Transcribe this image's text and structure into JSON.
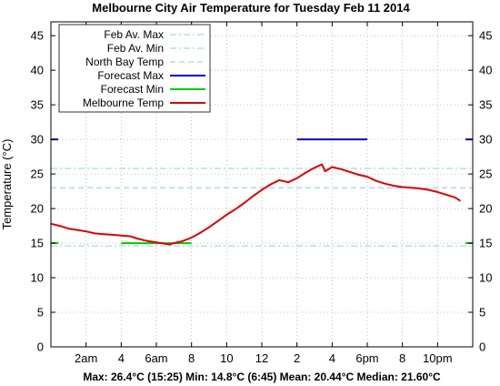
{
  "chart_data": {
    "type": "line",
    "title": "Melbourne City Air Temperature  for Tuesday Feb 11 2014",
    "ylabel": "Temperature (°C)",
    "xlabel": "",
    "stats_line": "Max: 26.4°C (15:25) Min: 14.8°C (6:45) Mean: 20.44°C Median: 21.60°C",
    "ylim": [
      0,
      47
    ],
    "xlim": [
      0,
      24
    ],
    "y_ticks": [
      "0",
      "5",
      "10",
      "15",
      "20",
      "25",
      "30",
      "35",
      "40",
      "45"
    ],
    "x_ticks": [
      {
        "hour": 2,
        "label": "2am"
      },
      {
        "hour": 4,
        "label": "4"
      },
      {
        "hour": 6,
        "label": "6am"
      },
      {
        "hour": 8,
        "label": "8"
      },
      {
        "hour": 10,
        "label": "10"
      },
      {
        "hour": 12,
        "label": "12"
      },
      {
        "hour": 14,
        "label": "2"
      },
      {
        "hour": 16,
        "label": "4"
      },
      {
        "hour": 18,
        "label": "6pm"
      },
      {
        "hour": 20,
        "label": "8"
      },
      {
        "hour": 22,
        "label": "10pm"
      }
    ],
    "grid": true,
    "legend_position": "top-left",
    "series": [
      {
        "name": "Feb Av. Max",
        "style": "dash-dot",
        "color": "#a8d6e8",
        "y": 25.8
      },
      {
        "name": "Feb Av. Min",
        "style": "dash-dot",
        "color": "#a8d6e8",
        "y": 14.6
      },
      {
        "name": "North Bay Temp",
        "style": "dash",
        "color": "#a8d6e8",
        "y": 23.0
      },
      {
        "name": "Forecast Max",
        "style": "solid",
        "color": "#0000cc",
        "y": 30,
        "x_range": [
          14,
          18
        ]
      },
      {
        "name": "Forecast Min",
        "style": "solid",
        "color": "#00cc00",
        "y": 15,
        "x_range": [
          4,
          8
        ]
      },
      {
        "name": "Melbourne Temp",
        "style": "solid",
        "color": "#dd0000",
        "points": [
          [
            0,
            17.8
          ],
          [
            0.5,
            17.5
          ],
          [
            1,
            17.1
          ],
          [
            1.5,
            16.9
          ],
          [
            2,
            16.7
          ],
          [
            2.5,
            16.4
          ],
          [
            3,
            16.3
          ],
          [
            3.5,
            16.2
          ],
          [
            4,
            16.1
          ],
          [
            4.5,
            16.0
          ],
          [
            5,
            15.6
          ],
          [
            5.5,
            15.3
          ],
          [
            6,
            15.1
          ],
          [
            6.5,
            14.9
          ],
          [
            6.75,
            14.8
          ],
          [
            7,
            15.0
          ],
          [
            7.5,
            15.3
          ],
          [
            8,
            15.8
          ],
          [
            8.5,
            16.5
          ],
          [
            9,
            17.3
          ],
          [
            9.5,
            18.2
          ],
          [
            10,
            19.1
          ],
          [
            10.5,
            19.9
          ],
          [
            11,
            20.8
          ],
          [
            11.5,
            21.8
          ],
          [
            12,
            22.7
          ],
          [
            12.5,
            23.5
          ],
          [
            13,
            24.1
          ],
          [
            13.5,
            23.8
          ],
          [
            14,
            24.4
          ],
          [
            14.5,
            25.2
          ],
          [
            15,
            25.9
          ],
          [
            15.42,
            26.4
          ],
          [
            15.6,
            25.4
          ],
          [
            16,
            26.0
          ],
          [
            16.5,
            25.7
          ],
          [
            17,
            25.3
          ],
          [
            17.5,
            24.9
          ],
          [
            18,
            24.6
          ],
          [
            18.5,
            24.0
          ],
          [
            19,
            23.6
          ],
          [
            19.5,
            23.3
          ],
          [
            20,
            23.1
          ],
          [
            20.5,
            23.0
          ],
          [
            21,
            22.9
          ],
          [
            21.5,
            22.7
          ],
          [
            22,
            22.4
          ],
          [
            22.5,
            22.0
          ],
          [
            23,
            21.6
          ],
          [
            23.3,
            21.1
          ]
        ]
      }
    ]
  }
}
